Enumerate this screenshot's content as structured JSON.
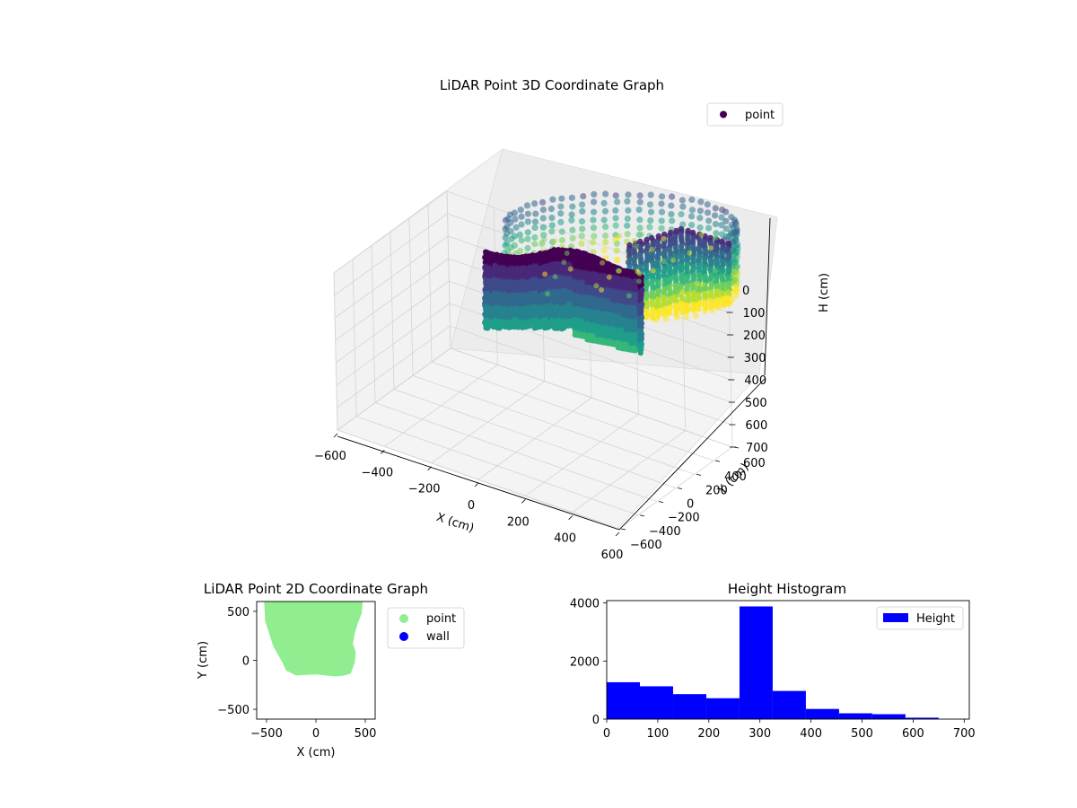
{
  "chart_data": [
    {
      "type": "scatter",
      "projection": "3d",
      "title": "LiDAR Point 3D Coordinate Graph",
      "xlabel": "X (cm)",
      "ylabel": "Y (cm)",
      "zlabel": "H (cm)",
      "xlim": [
        -600,
        600
      ],
      "ylim": [
        -600,
        600
      ],
      "zlim": [
        700,
        0
      ],
      "zinverted": true,
      "xticks": [
        -600,
        -400,
        -200,
        0,
        200,
        400,
        600
      ],
      "xtick_labels": [
        "−600",
        "−400",
        "−200",
        "0",
        "200",
        "400",
        "600"
      ],
      "yticks": [
        -600,
        -400,
        -200,
        0,
        200,
        400,
        600
      ],
      "ytick_labels": [
        "−600",
        "−400",
        "−200",
        "0",
        "200",
        "400",
        "600"
      ],
      "zticks": [
        0,
        100,
        200,
        300,
        400,
        500,
        600,
        700
      ],
      "ztick_labels": [
        "0",
        "100",
        "200",
        "300",
        "400",
        "500",
        "600",
        "700"
      ],
      "colormap": "viridis",
      "legend": {
        "position": "top-right",
        "entries": [
          {
            "label": "point",
            "color": "#440154"
          }
        ]
      },
      "grid": true
    },
    {
      "type": "scatter",
      "title": "LiDAR Point 2D Coordinate Graph",
      "xlabel": "X (cm)",
      "ylabel": "Y (cm)",
      "xlim": [
        -600,
        600
      ],
      "ylim": [
        -600,
        600
      ],
      "xticks": [
        -500,
        0,
        500
      ],
      "xtick_labels": [
        "−500",
        "0",
        "500"
      ],
      "yticks": [
        -500,
        0,
        500
      ],
      "ytick_labels": [
        "−500",
        "0",
        "500"
      ],
      "legend": {
        "position": "right",
        "entries": [
          {
            "label": "point",
            "color": "#90ee90"
          },
          {
            "label": "wall",
            "color": "#0000ff"
          }
        ]
      },
      "series": [
        {
          "name": "point",
          "color": "#90ee90",
          "outline": [
            [
              -520,
              600
            ],
            [
              470,
              600
            ],
            [
              460,
              480
            ],
            [
              420,
              380
            ],
            [
              390,
              280
            ],
            [
              370,
              170
            ],
            [
              400,
              80
            ],
            [
              390,
              -20
            ],
            [
              350,
              -130
            ],
            [
              290,
              -150
            ],
            [
              200,
              -160
            ],
            [
              100,
              -150
            ],
            [
              0,
              -140
            ],
            [
              -200,
              -150
            ],
            [
              -300,
              -100
            ],
            [
              -330,
              -30
            ],
            [
              -380,
              60
            ],
            [
              -430,
              150
            ],
            [
              -470,
              280
            ],
            [
              -510,
              400
            ],
            [
              -520,
              600
            ]
          ]
        }
      ]
    },
    {
      "type": "bar",
      "subtype": "histogram",
      "title": "Height Histogram",
      "xlim": [
        0,
        710
      ],
      "ylim": [
        0,
        4080
      ],
      "xticks": [
        0,
        100,
        200,
        300,
        400,
        500,
        600,
        700
      ],
      "xtick_labels": [
        "0",
        "100",
        "200",
        "300",
        "400",
        "500",
        "600",
        "700"
      ],
      "yticks": [
        0,
        2000,
        4000
      ],
      "ytick_labels": [
        "0",
        "2000",
        "4000"
      ],
      "bin_edges": [
        0,
        65,
        130,
        195,
        260,
        325,
        390,
        455,
        520,
        585,
        650
      ],
      "values": [
        1270,
        1130,
        860,
        720,
        3880,
        970,
        350,
        200,
        170,
        50
      ],
      "color": "#0000ff",
      "legend": {
        "position": "top-right",
        "entries": [
          {
            "label": "Height",
            "color": "#0000ff"
          }
        ]
      }
    }
  ]
}
